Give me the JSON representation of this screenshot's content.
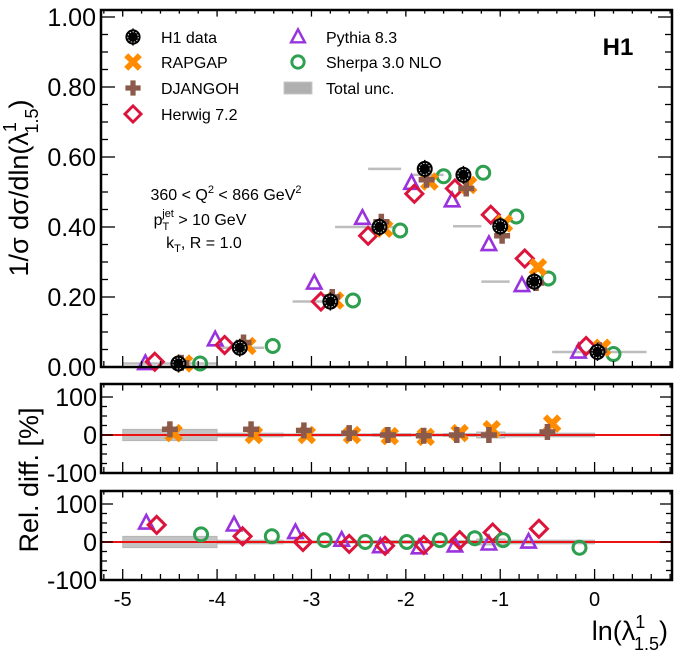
{
  "chart_data": [
    {
      "type": "scatter",
      "panel": "main",
      "ylabel": "1/σ dσ/dln(λ¹₁.₅)",
      "xlabel": "",
      "xlim": [
        -5.23,
        0.82
      ],
      "ylim": [
        0.0,
        1.02
      ],
      "yticks": [
        0.0,
        0.2,
        0.4,
        0.6,
        0.8,
        1.0
      ],
      "ytick_labels": [
        "0.00",
        "0.20",
        "0.40",
        "0.60",
        "0.80",
        "1.00"
      ],
      "experiment_label": "H1",
      "annotations": [
        "360 < Q² < 866 GeV²",
        "p_T^jet > 10 GeV",
        "k_T, R = 1.0"
      ],
      "legend_location": "top-left",
      "legend": [
        {
          "name": "H1 data",
          "marker": "filled-circle",
          "color": "#000000"
        },
        {
          "name": "RAPGAP",
          "marker": "filled-x",
          "color": "#ff8c00"
        },
        {
          "name": "DJANGOH",
          "marker": "filled-cross",
          "color": "#8b5a4a"
        },
        {
          "name": "Herwig 7.2",
          "marker": "open-diamond",
          "color": "#dc143c"
        },
        {
          "name": "Pythia 8.3",
          "marker": "open-triangle",
          "color": "#9933dd"
        },
        {
          "name": "Sherpa 3.0 NLO",
          "marker": "open-circle",
          "color": "#2e9e4f"
        },
        {
          "name": "Total unc.",
          "marker": "band",
          "color": "#b0b0b0"
        }
      ],
      "bins": [
        [
          -5.0,
          -4.0
        ],
        [
          -4.0,
          -3.5
        ],
        [
          -3.2,
          -2.75
        ],
        [
          -2.75,
          -2.1
        ],
        [
          -2.4,
          -2.05
        ],
        [
          -1.95,
          -1.6
        ],
        [
          -1.5,
          -1.2
        ],
        [
          -1.2,
          -0.9
        ],
        [
          -0.45,
          0.55
        ]
      ],
      "series": [
        {
          "name": "H1 data",
          "x": [
            -4.41,
            -3.76,
            -2.8,
            -2.28,
            -1.8,
            -1.39,
            -1.0,
            -0.64,
            0.03
          ],
          "y": [
            0.01,
            0.055,
            0.187,
            0.4,
            0.566,
            0.549,
            0.402,
            0.244,
            0.043
          ]
        },
        {
          "name": "RAPGAP",
          "x": [
            -4.35,
            -3.68,
            -2.75,
            -2.23,
            -1.75,
            -1.34,
            -0.96,
            -0.6,
            0.08
          ],
          "y": [
            0.01,
            0.06,
            0.19,
            0.395,
            0.53,
            0.52,
            0.41,
            0.285,
            0.055
          ]
        },
        {
          "name": "DJANGOH",
          "x": [
            -4.38,
            -3.72,
            -2.78,
            -2.26,
            -1.78,
            -1.36,
            -0.98,
            -0.62,
            0.05
          ],
          "y": [
            0.012,
            0.07,
            0.2,
            0.415,
            0.535,
            0.51,
            0.375,
            0.24,
            0.048
          ]
        },
        {
          "name": "Herwig 7.2",
          "x": [
            -4.66,
            -3.92,
            -2.9,
            -2.4,
            -1.91,
            -1.48,
            -1.1,
            -0.74,
            -0.09
          ],
          "y": [
            0.015,
            0.063,
            0.187,
            0.375,
            0.495,
            0.51,
            0.435,
            0.31,
            0.06
          ]
        },
        {
          "name": "Pythia 8.3",
          "x": [
            -4.76,
            -4.02,
            -2.97,
            -2.46,
            -1.94,
            -1.51,
            -1.12,
            -0.77,
            -0.17
          ],
          "y": [
            0.01,
            0.078,
            0.24,
            0.425,
            0.525,
            0.475,
            0.35,
            0.233,
            0.043
          ]
        },
        {
          "name": "Sherpa 3.0 NLO",
          "x": [
            -4.18,
            -3.41,
            -2.56,
            -2.06,
            -1.6,
            -1.18,
            -0.83,
            -0.49,
            0.2
          ],
          "y": [
            0.01,
            0.06,
            0.19,
            0.39,
            0.545,
            0.555,
            0.43,
            0.253,
            0.037
          ]
        }
      ]
    },
    {
      "type": "scatter",
      "panel": "ratio-1",
      "ylabel": "Rel. diff. [%]",
      "ylim": [
        -105,
        140
      ],
      "yticks": [
        -100,
        0,
        100
      ],
      "ytick_labels": [
        "-100",
        "0",
        "100"
      ],
      "reference_line": 0,
      "band_bins": [
        [
          -5.0,
          -4.0
        ],
        [
          -4.0,
          -3.3
        ],
        [
          -3.3,
          -2.75
        ],
        [
          -2.75,
          -2.35
        ],
        [
          -2.35,
          -1.95
        ],
        [
          -1.95,
          -1.6
        ],
        [
          -1.6,
          -1.25
        ],
        [
          -1.25,
          -0.95
        ],
        [
          -0.95,
          0.0
        ]
      ],
      "band_halfwidth": [
        15,
        5,
        3,
        3,
        4,
        3,
        4,
        8,
        5
      ],
      "series": [
        {
          "name": "RAPGAP",
          "x": [
            -4.46,
            -3.61,
            -3.05,
            -2.57,
            -2.17,
            -1.79,
            -1.43,
            -1.09,
            -0.45
          ],
          "y": [
            5,
            0,
            0,
            0,
            -3,
            -5,
            5,
            15,
            30
          ]
        },
        {
          "name": "DJANGOH",
          "x": [
            -4.5,
            -3.64,
            -3.08,
            -2.6,
            -2.19,
            -1.81,
            -1.46,
            -1.12,
            -0.5
          ],
          "y": [
            15,
            15,
            12,
            5,
            0,
            -2,
            0,
            0,
            8
          ]
        }
      ]
    },
    {
      "type": "scatter",
      "panel": "ratio-2",
      "ylabel": "Rel. diff. [%]",
      "xlabel": "ln(λ¹₁.₅)",
      "xticks": [
        -5,
        -4,
        -3,
        -2,
        -1,
        0
      ],
      "xtick_labels": [
        "-5",
        "-4",
        "-3",
        "-2",
        "-1",
        "0"
      ],
      "ylim": [
        -105,
        140
      ],
      "yticks": [
        -100,
        0,
        100
      ],
      "ytick_labels": [
        "-100",
        "0",
        "100"
      ],
      "reference_line": 0,
      "band_bins": [
        [
          -5.0,
          -4.0
        ],
        [
          -4.0,
          -3.3
        ],
        [
          -3.3,
          -2.75
        ],
        [
          -2.75,
          -2.35
        ],
        [
          -2.35,
          -1.95
        ],
        [
          -1.95,
          -1.6
        ],
        [
          -1.6,
          -1.25
        ],
        [
          -1.25,
          -0.95
        ],
        [
          -0.95,
          0.0
        ]
      ],
      "band_halfwidth": [
        15,
        5,
        3,
        3,
        4,
        3,
        4,
        8,
        5
      ],
      "series": [
        {
          "name": "Pythia 8.3",
          "x": [
            -4.75,
            -3.82,
            -3.17,
            -2.68,
            -2.27,
            -1.86,
            -1.48,
            -1.12,
            -0.7
          ],
          "y": [
            50,
            45,
            25,
            5,
            -12,
            -15,
            -10,
            -5,
            0
          ]
        },
        {
          "name": "Herwig 7.2",
          "x": [
            -4.64,
            -3.73,
            -3.09,
            -2.6,
            -2.22,
            -1.81,
            -1.43,
            -1.08,
            -0.59
          ],
          "y": [
            45,
            15,
            0,
            -5,
            -10,
            -8,
            5,
            25,
            35
          ]
        },
        {
          "name": "Sherpa 3.0 NLO",
          "x": [
            -4.17,
            -3.42,
            -2.86,
            -2.43,
            -1.99,
            -1.64,
            -1.27,
            -0.97,
            -0.16
          ],
          "y": [
            20,
            15,
            5,
            0,
            0,
            5,
            10,
            5,
            -15
          ]
        }
      ]
    }
  ]
}
